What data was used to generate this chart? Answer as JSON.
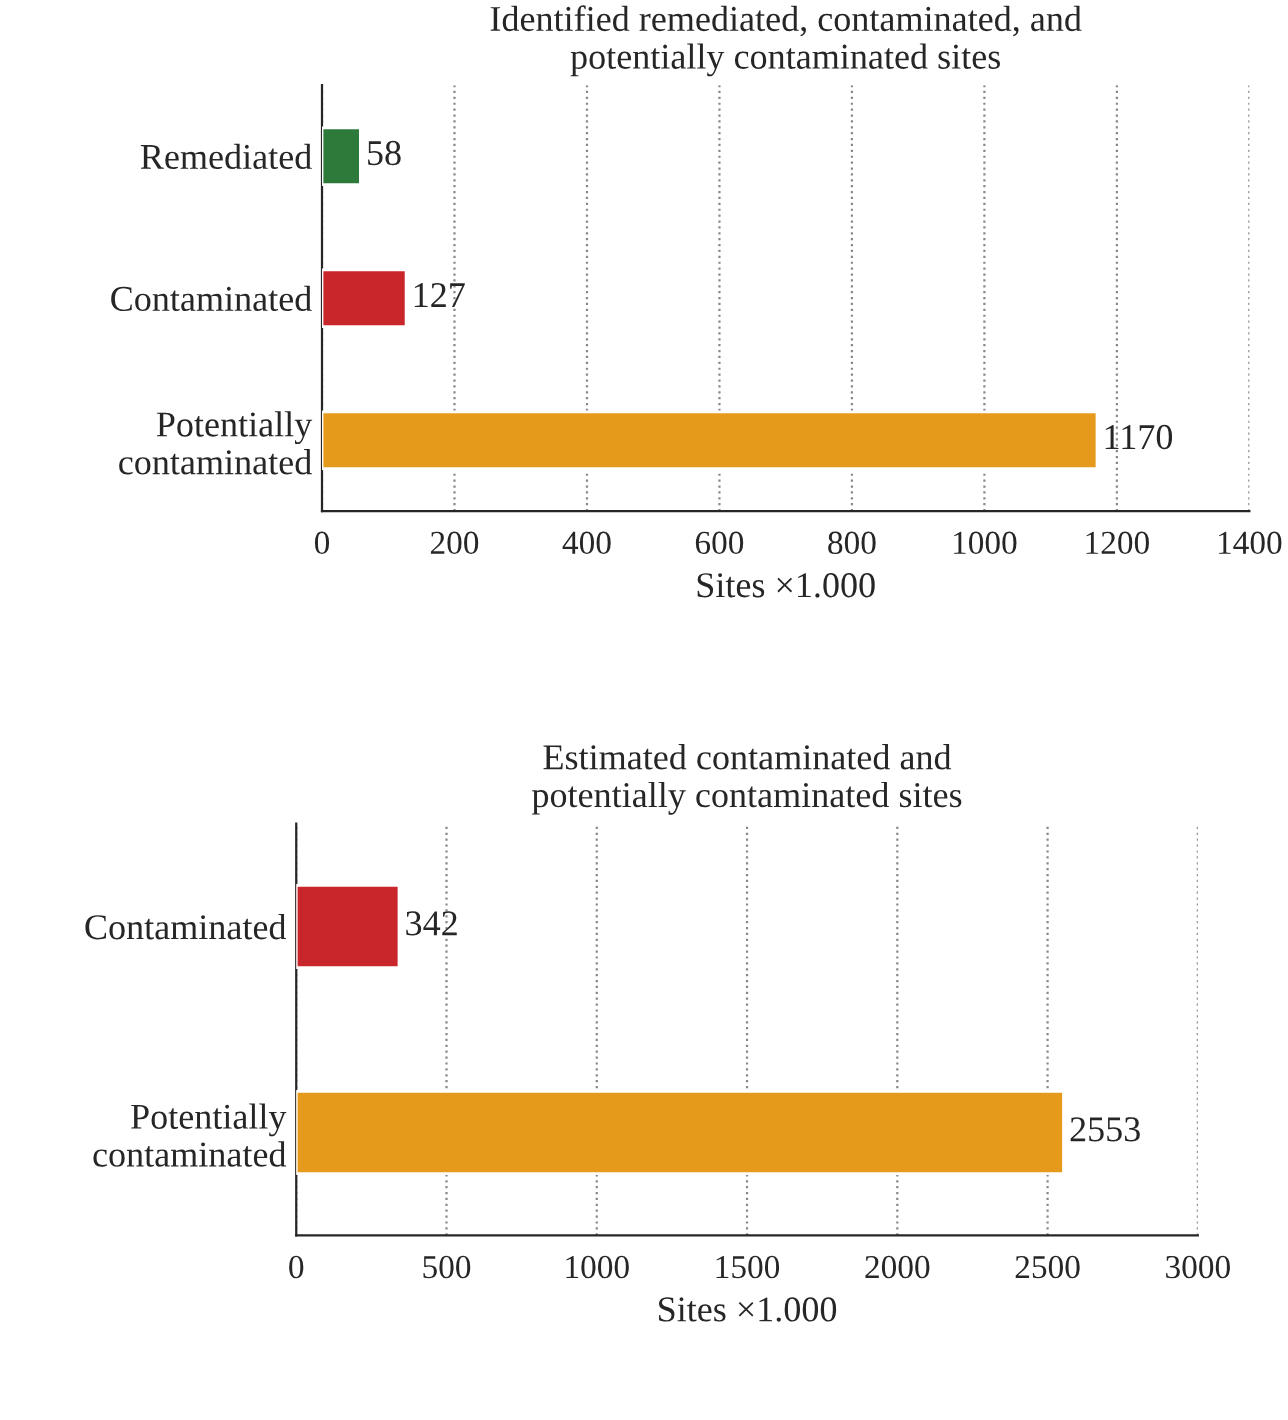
{
  "chart_data": [
    {
      "type": "bar",
      "orientation": "horizontal",
      "title": "Identified remediated, contaminated, and\npotentially contaminated sites",
      "xlabel": "Sites ×1.000",
      "categories": [
        "Remediated",
        "Contaminated",
        "Potentially\ncontaminated"
      ],
      "values": [
        58,
        127,
        1170
      ],
      "colors": [
        "#2e7a3a",
        "#c8262b",
        "#e59a1c"
      ],
      "xlim": [
        0,
        1400
      ],
      "xticks": [
        0,
        200,
        400,
        600,
        800,
        1000,
        1200,
        1400
      ],
      "grid": "x",
      "data_labels": true
    },
    {
      "type": "bar",
      "orientation": "horizontal",
      "title": "Estimated contaminated and\npotentially contaminated sites",
      "xlabel": "Sites ×1.000",
      "categories": [
        "Contaminated",
        "Potentially\ncontaminated"
      ],
      "values": [
        342,
        2553
      ],
      "colors": [
        "#c8262b",
        "#e59a1c"
      ],
      "xlim": [
        0,
        3000
      ],
      "xticks": [
        0,
        500,
        1000,
        1500,
        2000,
        2500,
        3000
      ],
      "grid": "x",
      "data_labels": true
    }
  ]
}
